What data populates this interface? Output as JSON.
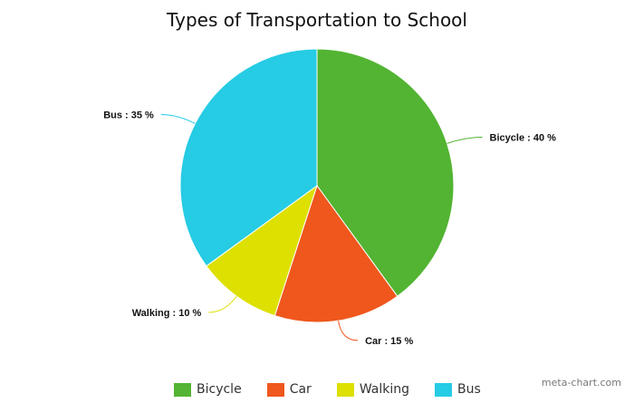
{
  "chart_data": {
    "type": "pie",
    "title": "Types of Transportation to School",
    "slices": [
      {
        "label": "Bicycle",
        "value": 40,
        "color": "#52b432",
        "data_label": "Bicycle : 40 %"
      },
      {
        "label": "Car",
        "value": 15,
        "color": "#ef571d",
        "data_label": "Car : 15 %"
      },
      {
        "label": "Walking",
        "value": 10,
        "color": "#dde000",
        "data_label": "Walking : 10 %"
      },
      {
        "label": "Bus",
        "value": 35,
        "color": "#26cbe4",
        "data_label": "Bus : 35 %"
      }
    ],
    "legend_position": "bottom"
  },
  "credit": "meta-chart.com"
}
